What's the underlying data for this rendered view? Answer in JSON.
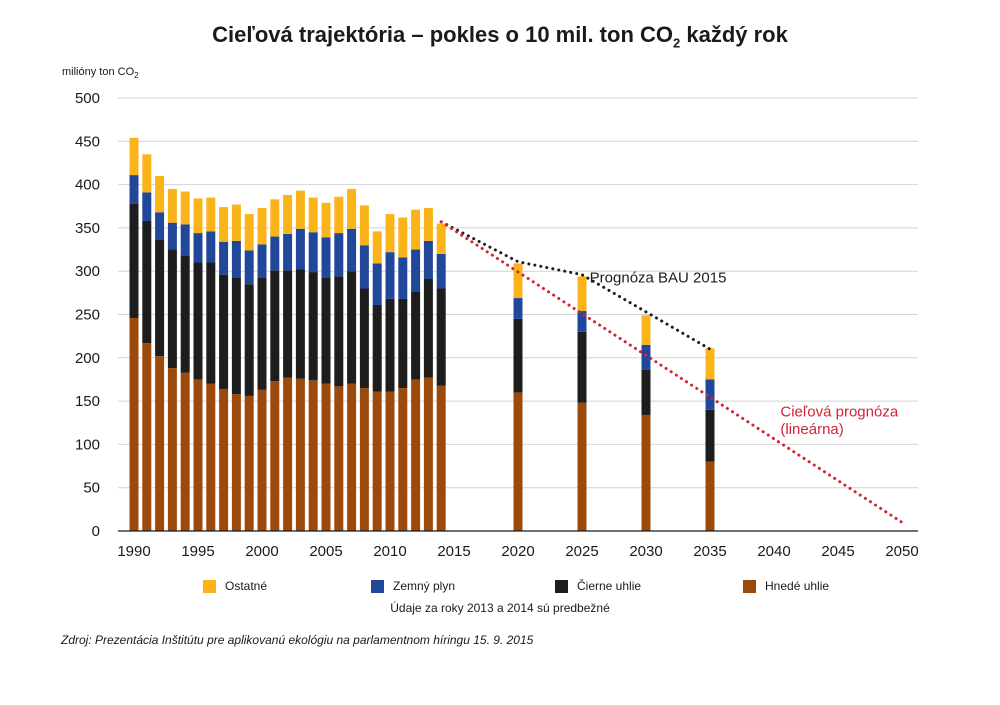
{
  "colors": {
    "ostatne": "#fab319",
    "plyn": "#21479a",
    "cierne": "#1d1d1d",
    "hnede": "#9c4a0b",
    "grid": "#d4d4d4",
    "bau": "#1d1d1d",
    "target": "#d42331"
  },
  "texts": {
    "title_main": "Cieľová trajektória – pokles o 10 mil. ton CO",
    "title_sub": "2",
    "title_end": " každý rok",
    "ylabel_main": "milióny ton CO",
    "ylabel_sub": "2",
    "note": "Údaje za roky 2013 a 2014 sú predbežné",
    "source": "Zdroj: Prezentácia Inštitútu pre aplikovanú ekológiu na parlamentnom híringu 15. 9. 2015"
  },
  "legend": [
    {
      "key": "ostatne",
      "label": "Ostatné"
    },
    {
      "key": "plyn",
      "label": "Zemný plyn"
    },
    {
      "key": "cierne",
      "label": "Čierne uhlie"
    },
    {
      "key": "hnede",
      "label": "Hnedé uhlie"
    }
  ],
  "chart_data": {
    "type": "bar",
    "stacked": true,
    "title": "Cieľová trajektória – pokles o 10 mil. ton CO2 každý rok",
    "ylabel": "milióny ton CO2",
    "ylim": [
      0,
      500
    ],
    "yticks": [
      0,
      50,
      100,
      150,
      200,
      250,
      300,
      350,
      400,
      450,
      500
    ],
    "xlim": [
      1990,
      2050
    ],
    "xticks": [
      1990,
      1995,
      2000,
      2005,
      2010,
      2015,
      2020,
      2025,
      2030,
      2035,
      2040,
      2045,
      2050
    ],
    "x": [
      1990,
      1991,
      1992,
      1993,
      1994,
      1995,
      1996,
      1997,
      1998,
      1999,
      2000,
      2001,
      2002,
      2003,
      2004,
      2005,
      2006,
      2007,
      2008,
      2009,
      2010,
      2011,
      2012,
      2013,
      2014,
      2020,
      2025,
      2030,
      2035
    ],
    "series": [
      {
        "name": "Hnedé uhlie",
        "key": "hnede",
        "values": [
          246,
          217,
          202,
          188,
          183,
          175,
          170,
          164,
          158,
          156,
          163,
          173,
          177,
          176,
          174,
          170,
          167,
          170,
          165,
          161,
          161,
          165,
          175,
          177,
          168,
          160,
          148,
          134,
          80
        ]
      },
      {
        "name": "Čierne uhlie",
        "key": "cierne",
        "values": [
          132,
          141,
          134,
          137,
          135,
          135,
          140,
          132,
          135,
          129,
          130,
          128,
          124,
          126,
          125,
          123,
          127,
          130,
          115,
          100,
          107,
          103,
          101,
          114,
          112,
          85,
          82,
          52,
          60
        ]
      },
      {
        "name": "Zemný plyn",
        "key": "plyn",
        "values": [
          33,
          33,
          32,
          31,
          36,
          34,
          36,
          38,
          42,
          39,
          38,
          39,
          42,
          47,
          46,
          46,
          50,
          49,
          50,
          48,
          54,
          48,
          49,
          44,
          40,
          24,
          24,
          29,
          35
        ]
      },
      {
        "name": "Ostatné",
        "key": "ostatne",
        "values": [
          43,
          44,
          42,
          39,
          38,
          40,
          39,
          40,
          42,
          42,
          42,
          43,
          45,
          44,
          40,
          40,
          42,
          46,
          46,
          37,
          44,
          46,
          46,
          38,
          35,
          40,
          40,
          34,
          36
        ]
      }
    ],
    "lines": [
      {
        "name": "Prognóza BAU 2015",
        "key": "bau",
        "style": "dotted",
        "x": [
          2014,
          2020,
          2025,
          2030,
          2035
        ],
        "y": [
          357,
          311,
          296,
          253,
          210
        ]
      },
      {
        "name": "Cieľová prognóza (lineárna)",
        "key": "target",
        "style": "dotted",
        "x": [
          2014,
          2050
        ],
        "y": [
          357,
          10
        ]
      }
    ],
    "annotations": [
      {
        "text": "Prognóza BAU 2015",
        "key": "bau",
        "x": 2025.6,
        "y": 287
      },
      {
        "text": "Cieľová prognóza",
        "key": "target",
        "x": 2040.5,
        "y": 132
      },
      {
        "text": "(lineárna)",
        "key": "target",
        "x": 2040.5,
        "y": 112
      }
    ]
  }
}
